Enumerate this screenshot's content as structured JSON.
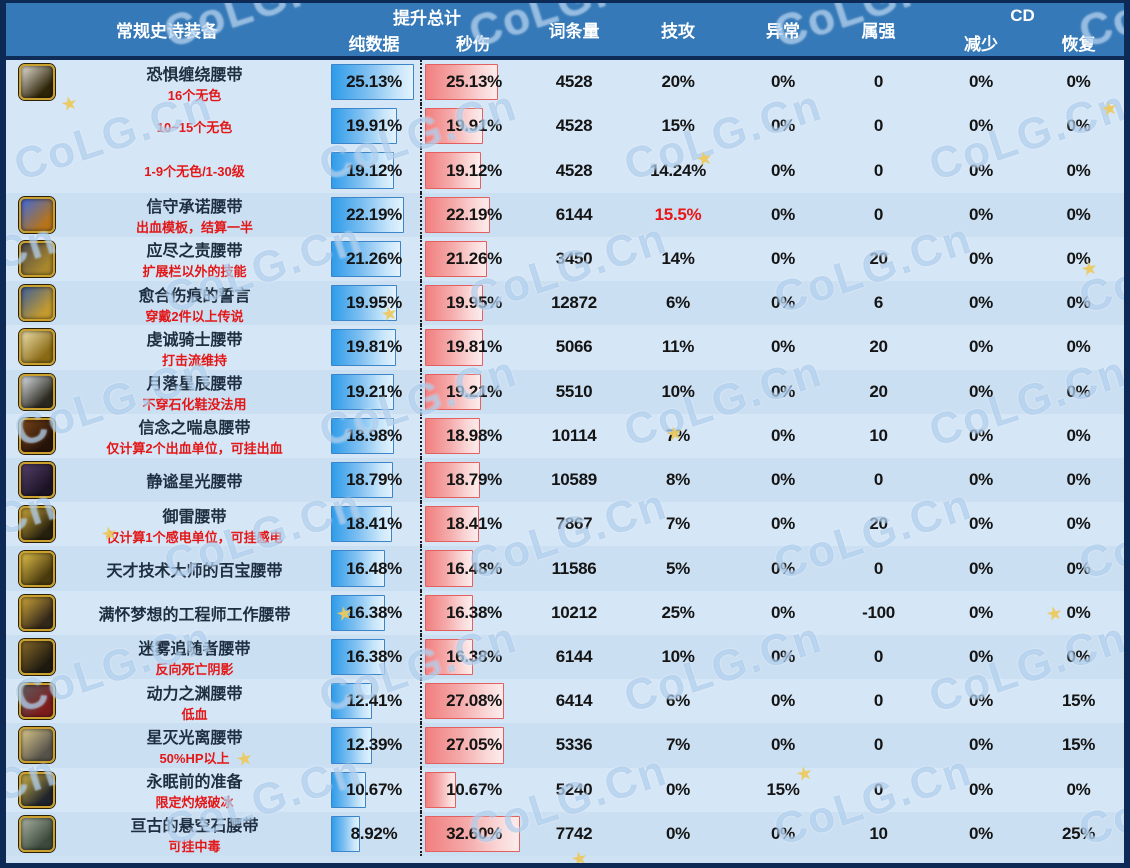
{
  "watermark": {
    "text": "CoLG.Cn",
    "star": "★"
  },
  "colors": {
    "header_bg": "#3579b8",
    "frame": "#0c2a55",
    "body_bg": "#cfe2f4",
    "bar_blue": "#2f9ce9",
    "bar_red": "#f17f7f",
    "note_red": "#e31717",
    "highlight_red": "#ea1515"
  },
  "header": {
    "equipment": "常规史诗装备",
    "total": "提升总计",
    "pure": "纯数据",
    "dps": "秒伤",
    "entries": "词条量",
    "skill_atk": "技攻",
    "abnormal": "异常",
    "elemental": "属强",
    "cd": "CD",
    "cd_reduce": "减少",
    "cd_recover": "恢复"
  },
  "chart_data": {
    "type": "table",
    "columns": [
      "常规史诗装备",
      "提升总计-纯数据",
      "提升总计-秒伤",
      "词条量",
      "技攻",
      "异常",
      "属强",
      "CD减少",
      "CD恢复"
    ],
    "bar_max": {
      "pure": 25.13,
      "dps": 32.6
    },
    "legend_position": "none",
    "grid": false,
    "rows": [
      {
        "group": 0,
        "icon": {
          "c1": "#e8e4da",
          "c2": "#2e2408"
        },
        "icon_row": 1,
        "name": "恐惧缠绕腰带",
        "note": "16个无色",
        "pure": 25.13,
        "pure_label": "25.13%",
        "dps": 25.13,
        "dps_label": "25.13%",
        "entries": "4528",
        "skill": "20%",
        "skill_red": false,
        "abnormal": "0%",
        "elemental": "0",
        "cd_reduce": "0%",
        "cd_recover": "0%"
      },
      {
        "group": 0,
        "icon": {
          "c1": "#e8e4da",
          "c2": "#2e2408"
        },
        "icon_row": 0,
        "name": "",
        "note": "10~15个无色",
        "pure": 19.91,
        "pure_label": "19.91%",
        "dps": 19.91,
        "dps_label": "19.91%",
        "entries": "4528",
        "skill": "15%",
        "skill_red": false,
        "abnormal": "0%",
        "elemental": "0",
        "cd_reduce": "0%",
        "cd_recover": "0%"
      },
      {
        "group": 0,
        "icon": null,
        "icon_row": 0,
        "name": "",
        "note": "1-9个无色/1-30级",
        "pure": 19.12,
        "pure_label": "19.12%",
        "dps": 19.12,
        "dps_label": "19.12%",
        "entries": "4528",
        "skill": "14.24%",
        "skill_red": false,
        "abnormal": "0%",
        "elemental": "0",
        "cd_reduce": "0%",
        "cd_recover": "0%"
      },
      {
        "group": 1,
        "icon": {
          "c1": "#3f6be0",
          "c2": "#b5741c"
        },
        "icon_row": 1,
        "name": "信守承诺腰带",
        "note": "出血模板，结算一半",
        "pure": 22.19,
        "pure_label": "22.19%",
        "dps": 22.19,
        "dps_label": "22.19%",
        "entries": "6144",
        "skill": "15.5%",
        "skill_red": true,
        "abnormal": "0%",
        "elemental": "0",
        "cd_reduce": "0%",
        "cd_recover": "0%"
      },
      {
        "group": 2,
        "icon": {
          "c1": "#4a4a52",
          "c2": "#a8862a"
        },
        "icon_row": 1,
        "name": "应尽之责腰带",
        "note": "扩展栏以外的技能",
        "pure": 21.26,
        "pure_label": "21.26%",
        "dps": 21.26,
        "dps_label": "21.26%",
        "entries": "3450",
        "skill": "14%",
        "skill_red": false,
        "abnormal": "0%",
        "elemental": "20",
        "cd_reduce": "0%",
        "cd_recover": "0%"
      },
      {
        "group": 3,
        "icon": {
          "c1": "#3b5e9e",
          "c2": "#c29a2e"
        },
        "icon_row": 1,
        "name": "愈合伤痕的誓言",
        "note": "穿戴2件以上传说",
        "pure": 19.95,
        "pure_label": "19.95%",
        "dps": 19.95,
        "dps_label": "19.95%",
        "entries": "12872",
        "skill": "6%",
        "skill_red": false,
        "abnormal": "0%",
        "elemental": "6",
        "cd_reduce": "0%",
        "cd_recover": "0%"
      },
      {
        "group": 4,
        "icon": {
          "c1": "#efe3b0",
          "c2": "#8a6a14"
        },
        "icon_row": 1,
        "name": "虔诚骑士腰带",
        "note": "打击流维持",
        "pure": 19.81,
        "pure_label": "19.81%",
        "dps": 19.81,
        "dps_label": "19.81%",
        "entries": "5066",
        "skill": "11%",
        "skill_red": false,
        "abnormal": "0%",
        "elemental": "20",
        "cd_reduce": "0%",
        "cd_recover": "0%"
      },
      {
        "group": 5,
        "icon": {
          "c1": "#dfe4e9",
          "c2": "#2c2a20"
        },
        "icon_row": 1,
        "name": "月落星辰腰带",
        "note": "不穿石化鞋没法用",
        "pure": 19.21,
        "pure_label": "19.21%",
        "dps": 19.21,
        "dps_label": "19.21%",
        "entries": "5510",
        "skill": "10%",
        "skill_red": false,
        "abnormal": "0%",
        "elemental": "20",
        "cd_reduce": "0%",
        "cd_recover": "0%"
      },
      {
        "group": 6,
        "icon": {
          "c1": "#7a4418",
          "c2": "#26140a"
        },
        "icon_row": 1,
        "name": "信念之喘息腰带",
        "note": "仅计算2个出血单位，可挂出血",
        "pure": 18.98,
        "pure_label": "18.98%",
        "dps": 18.98,
        "dps_label": "18.98%",
        "entries": "10114",
        "skill": "7%",
        "skill_red": false,
        "abnormal": "0%",
        "elemental": "10",
        "cd_reduce": "0%",
        "cd_recover": "0%"
      },
      {
        "group": 7,
        "icon": {
          "c1": "#54406a",
          "c2": "#1c1426"
        },
        "icon_row": 1,
        "name": "静谧星光腰带",
        "note": "",
        "pure": 18.79,
        "pure_label": "18.79%",
        "dps": 18.79,
        "dps_label": "18.79%",
        "entries": "10589",
        "skill": "8%",
        "skill_red": false,
        "abnormal": "0%",
        "elemental": "0",
        "cd_reduce": "0%",
        "cd_recover": "0%"
      },
      {
        "group": 8,
        "icon": {
          "c1": "#caa63a",
          "c2": "#26200e"
        },
        "icon_row": 1,
        "name": "御雷腰带",
        "note": "仅计算1个感电单位，可挂感电",
        "pure": 18.41,
        "pure_label": "18.41%",
        "dps": 18.41,
        "dps_label": "18.41%",
        "entries": "7867",
        "skill": "7%",
        "skill_red": false,
        "abnormal": "0%",
        "elemental": "20",
        "cd_reduce": "0%",
        "cd_recover": "0%"
      },
      {
        "group": 9,
        "icon": {
          "c1": "#e3c24a",
          "c2": "#4a3a0e"
        },
        "icon_row": 1,
        "name": "天才技术大师的百宝腰带",
        "note": "",
        "pure": 16.48,
        "pure_label": "16.48%",
        "dps": 16.48,
        "dps_label": "16.48%",
        "entries": "11586",
        "skill": "5%",
        "skill_red": false,
        "abnormal": "0%",
        "elemental": "0",
        "cd_reduce": "0%",
        "cd_recover": "0%"
      },
      {
        "group": 10,
        "icon": {
          "c1": "#d0a73a",
          "c2": "#33281a"
        },
        "icon_row": 1,
        "name": "满怀梦想的工程师工作腰带",
        "note": "",
        "pure": 16.38,
        "pure_label": "16.38%",
        "dps": 16.38,
        "dps_label": "16.38%",
        "entries": "10212",
        "skill": "25%",
        "skill_red": false,
        "abnormal": "0%",
        "elemental": "-100",
        "cd_reduce": "0%",
        "cd_recover": "0%"
      },
      {
        "group": 11,
        "icon": {
          "c1": "#8a6a2a",
          "c2": "#1e1a10"
        },
        "icon_row": 1,
        "name": "迷雾追随者腰带",
        "note": "反向死亡阴影",
        "pure": 16.38,
        "pure_label": "16.38%",
        "dps": 16.38,
        "dps_label": "16.38%",
        "entries": "6144",
        "skill": "10%",
        "skill_red": false,
        "abnormal": "0%",
        "elemental": "0",
        "cd_reduce": "0%",
        "cd_recover": "0%"
      },
      {
        "group": 12,
        "icon": {
          "c1": "#5c5c60",
          "c2": "#7e1c1c"
        },
        "icon_row": 1,
        "name": "动力之渊腰带",
        "note": "低血",
        "pure": 12.41,
        "pure_label": "12.41%",
        "dps": 27.08,
        "dps_label": "27.08%",
        "entries": "6414",
        "skill": "6%",
        "skill_red": false,
        "abnormal": "0%",
        "elemental": "0",
        "cd_reduce": "0%",
        "cd_recover": "15%"
      },
      {
        "group": 13,
        "icon": {
          "c1": "#ddcb8e",
          "c2": "#56524a"
        },
        "icon_row": 1,
        "name": "星灭光离腰带",
        "note": "50%HP以上",
        "pure": 12.39,
        "pure_label": "12.39%",
        "dps": 27.05,
        "dps_label": "27.05%",
        "entries": "5336",
        "skill": "7%",
        "skill_red": false,
        "abnormal": "0%",
        "elemental": "0",
        "cd_reduce": "0%",
        "cd_recover": "15%"
      },
      {
        "group": 14,
        "icon": {
          "c1": "#cbb24a",
          "c2": "#20242c"
        },
        "icon_row": 1,
        "name": "永眠前的准备",
        "note": "限定灼烧破冰",
        "pure": 10.67,
        "pure_label": "10.67%",
        "dps": 10.67,
        "dps_label": "10.67%",
        "entries": "5240",
        "skill": "0%",
        "skill_red": false,
        "abnormal": "15%",
        "elemental": "0",
        "cd_reduce": "0%",
        "cd_recover": "0%"
      },
      {
        "group": 15,
        "icon": {
          "c1": "#aab4a6",
          "c2": "#3c4a3c"
        },
        "icon_row": 1,
        "name": "亘古的悬空石腰带",
        "note": "可挂中毒",
        "pure": 8.92,
        "pure_label": "8.92%",
        "dps": 32.6,
        "dps_label": "32.60%",
        "entries": "7742",
        "skill": "0%",
        "skill_red": false,
        "abnormal": "0%",
        "elemental": "10",
        "cd_reduce": "0%",
        "cd_recover": "25%"
      }
    ]
  }
}
